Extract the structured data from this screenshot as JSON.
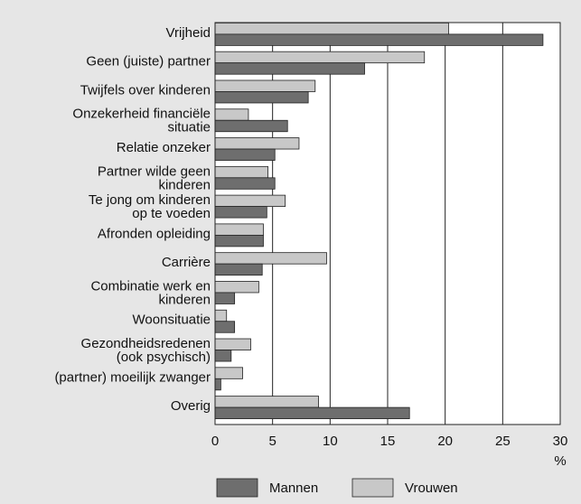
{
  "chart_data": {
    "type": "bar",
    "orientation": "horizontal",
    "categories": [
      [
        "Vrijheid"
      ],
      [
        "Geen (juiste) partner"
      ],
      [
        "Twijfels over kinderen"
      ],
      [
        "Onzekerheid financiële",
        "situatie"
      ],
      [
        "Relatie onzeker"
      ],
      [
        "Partner wilde geen",
        "kinderen"
      ],
      [
        "Te jong om kinderen",
        "op te voeden"
      ],
      [
        "Afronden opleiding"
      ],
      [
        "Carrière"
      ],
      [
        "Combinatie werk en",
        "kinderen"
      ],
      [
        "Woonsituatie"
      ],
      [
        "Gezondheidsredenen",
        "(ook psychisch)"
      ],
      [
        "(partner) moeilijk zwanger"
      ],
      [
        "Overig"
      ]
    ],
    "series": [
      {
        "name": "Vrouwen",
        "color": "#c8c8c8",
        "values": [
          20.3,
          18.2,
          8.7,
          2.9,
          7.3,
          4.6,
          6.1,
          4.2,
          9.7,
          3.8,
          1.0,
          3.1,
          2.4,
          9.0
        ]
      },
      {
        "name": "Mannen",
        "color": "#6e6e6e",
        "values": [
          28.5,
          13.0,
          8.1,
          6.3,
          5.2,
          5.2,
          4.5,
          4.2,
          4.1,
          1.7,
          1.7,
          1.4,
          0.5,
          16.9
        ]
      }
    ],
    "xlim": [
      0,
      30
    ],
    "xticks": [
      0,
      5,
      10,
      15,
      20,
      25,
      30
    ],
    "xlabel": "%",
    "grid": true,
    "legend_order": [
      1,
      0
    ]
  }
}
